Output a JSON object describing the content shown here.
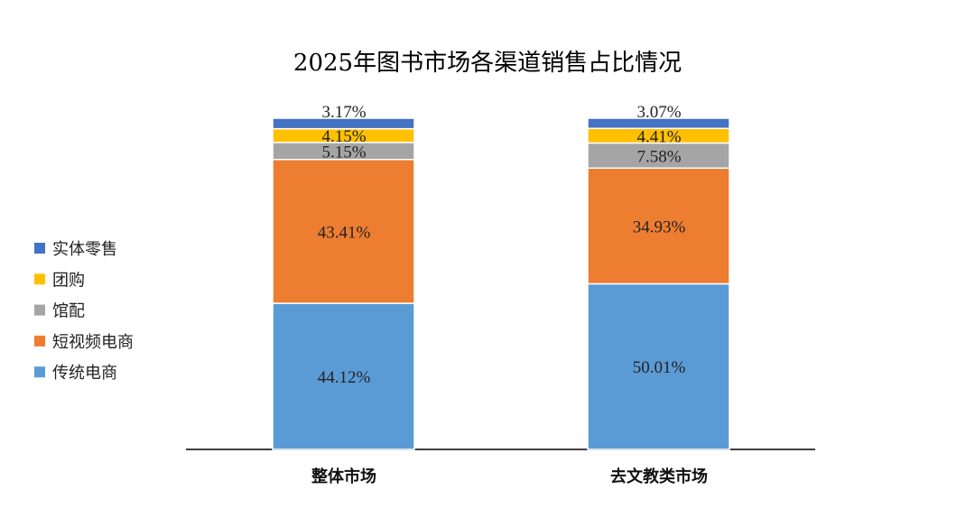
{
  "chart_data": {
    "type": "bar",
    "stacked": true,
    "title": "2025年图书市场各渠道销售占比情况",
    "categories": [
      "整体市场",
      "去文教类市场"
    ],
    "series": [
      {
        "name": "传统电商",
        "values": [
          44.12,
          50.01
        ],
        "labels": [
          "44.12%",
          "50.01%"
        ],
        "color": "#5B9BD5"
      },
      {
        "name": "短视频电商",
        "values": [
          43.41,
          34.93
        ],
        "labels": [
          "43.41%",
          "34.93%"
        ],
        "color": "#ED7D31"
      },
      {
        "name": "馆配",
        "values": [
          5.15,
          7.58
        ],
        "labels": [
          "5.15%",
          "7.58%"
        ],
        "color": "#A5A5A5"
      },
      {
        "name": "团购",
        "values": [
          4.15,
          4.41
        ],
        "labels": [
          "4.15%",
          "4.41%"
        ],
        "color": "#FFC000"
      },
      {
        "name": "实体零售",
        "values": [
          3.17,
          3.07
        ],
        "labels": [
          "3.17%",
          "3.07%"
        ],
        "color": "#4472C4"
      }
    ],
    "ylim": [
      0,
      100
    ],
    "unit": "%",
    "grid": false,
    "legend_position": "left"
  }
}
